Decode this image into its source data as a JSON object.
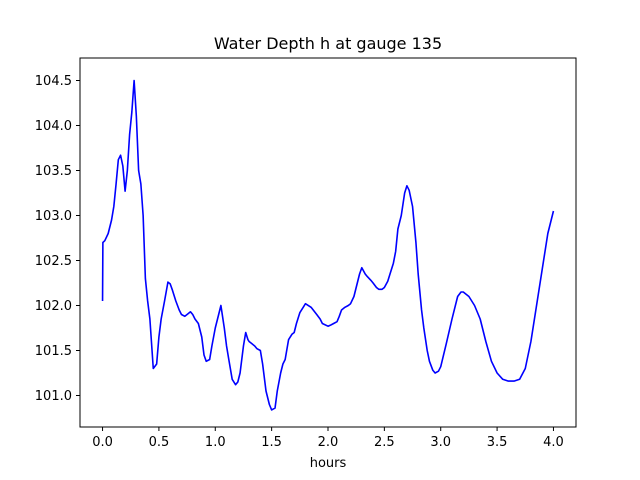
{
  "chart_data": {
    "type": "line",
    "title": "Water Depth h at gauge 135",
    "xlabel": "hours",
    "ylabel": "",
    "xlim": [
      -0.2,
      4.2
    ],
    "ylim": [
      100.65,
      104.75
    ],
    "grid": false,
    "xticks": [
      0.0,
      0.5,
      1.0,
      1.5,
      2.0,
      2.5,
      3.0,
      3.5,
      4.0
    ],
    "xtick_labels": [
      "0.0",
      "0.5",
      "1.0",
      "1.5",
      "2.0",
      "2.5",
      "3.0",
      "3.5",
      "4.0"
    ],
    "yticks": [
      101.0,
      101.5,
      102.0,
      102.5,
      103.0,
      103.5,
      104.0,
      104.5
    ],
    "ytick_labels": [
      "101.0",
      "101.5",
      "102.0",
      "102.5",
      "103.0",
      "103.5",
      "104.0",
      "104.5"
    ],
    "series": [
      {
        "name": "",
        "color": "#0000ff",
        "x": [
          0.0,
          0.003,
          0.02,
          0.05,
          0.08,
          0.1,
          0.12,
          0.14,
          0.16,
          0.18,
          0.2,
          0.22,
          0.24,
          0.26,
          0.28,
          0.3,
          0.32,
          0.34,
          0.36,
          0.38,
          0.4,
          0.42,
          0.45,
          0.48,
          0.5,
          0.52,
          0.55,
          0.58,
          0.6,
          0.62,
          0.65,
          0.68,
          0.7,
          0.73,
          0.75,
          0.78,
          0.8,
          0.82,
          0.85,
          0.88,
          0.9,
          0.92,
          0.95,
          0.97,
          1.0,
          1.02,
          1.05,
          1.08,
          1.1,
          1.12,
          1.15,
          1.18,
          1.2,
          1.22,
          1.25,
          1.27,
          1.29,
          1.3,
          1.32,
          1.35,
          1.37,
          1.4,
          1.42,
          1.45,
          1.48,
          1.5,
          1.53,
          1.55,
          1.58,
          1.6,
          1.62,
          1.65,
          1.68,
          1.7,
          1.72,
          1.75,
          1.78,
          1.8,
          1.85,
          1.9,
          1.93,
          1.95,
          2.0,
          2.02,
          2.05,
          2.08,
          2.1,
          2.12,
          2.15,
          2.18,
          2.2,
          2.23,
          2.25,
          2.28,
          2.3,
          2.33,
          2.35,
          2.38,
          2.4,
          2.43,
          2.45,
          2.48,
          2.5,
          2.53,
          2.55,
          2.58,
          2.6,
          2.62,
          2.65,
          2.68,
          2.7,
          2.72,
          2.75,
          2.78,
          2.8,
          2.83,
          2.85,
          2.88,
          2.9,
          2.93,
          2.95,
          2.98,
          3.0,
          3.05,
          3.1,
          3.15,
          3.18,
          3.2,
          3.25,
          3.3,
          3.35,
          3.4,
          3.45,
          3.5,
          3.55,
          3.6,
          3.65,
          3.7,
          3.75,
          3.8,
          3.85,
          3.9,
          3.95,
          4.0
        ],
        "y": [
          102.05,
          102.7,
          102.72,
          102.8,
          102.95,
          103.1,
          103.35,
          103.62,
          103.67,
          103.55,
          103.27,
          103.5,
          103.9,
          104.15,
          104.5,
          104.1,
          103.5,
          103.35,
          103.0,
          102.3,
          102.05,
          101.85,
          101.3,
          101.35,
          101.65,
          101.85,
          102.05,
          102.26,
          102.24,
          102.17,
          102.05,
          101.95,
          101.9,
          101.88,
          101.9,
          101.93,
          101.9,
          101.85,
          101.8,
          101.65,
          101.45,
          101.38,
          101.4,
          101.55,
          101.75,
          101.85,
          102.0,
          101.75,
          101.55,
          101.4,
          101.18,
          101.12,
          101.15,
          101.25,
          101.55,
          101.7,
          101.62,
          101.6,
          101.58,
          101.55,
          101.52,
          101.5,
          101.35,
          101.05,
          100.9,
          100.84,
          100.86,
          101.05,
          101.25,
          101.35,
          101.4,
          101.62,
          101.68,
          101.7,
          101.8,
          101.92,
          101.98,
          102.02,
          101.98,
          101.9,
          101.85,
          101.8,
          101.77,
          101.78,
          101.8,
          101.82,
          101.88,
          101.95,
          101.98,
          102.0,
          102.02,
          102.1,
          102.2,
          102.35,
          102.42,
          102.35,
          102.32,
          102.28,
          102.25,
          102.2,
          102.18,
          102.18,
          102.2,
          102.27,
          102.35,
          102.47,
          102.6,
          102.85,
          103.0,
          103.25,
          103.33,
          103.28,
          103.1,
          102.7,
          102.35,
          101.95,
          101.75,
          101.5,
          101.38,
          101.28,
          101.25,
          101.27,
          101.32,
          101.58,
          101.85,
          102.1,
          102.15,
          102.15,
          102.1,
          102.0,
          101.85,
          101.6,
          101.38,
          101.25,
          101.18,
          101.16,
          101.16,
          101.18,
          101.3,
          101.6,
          102.0,
          102.4,
          102.8,
          103.05
        ]
      }
    ]
  }
}
